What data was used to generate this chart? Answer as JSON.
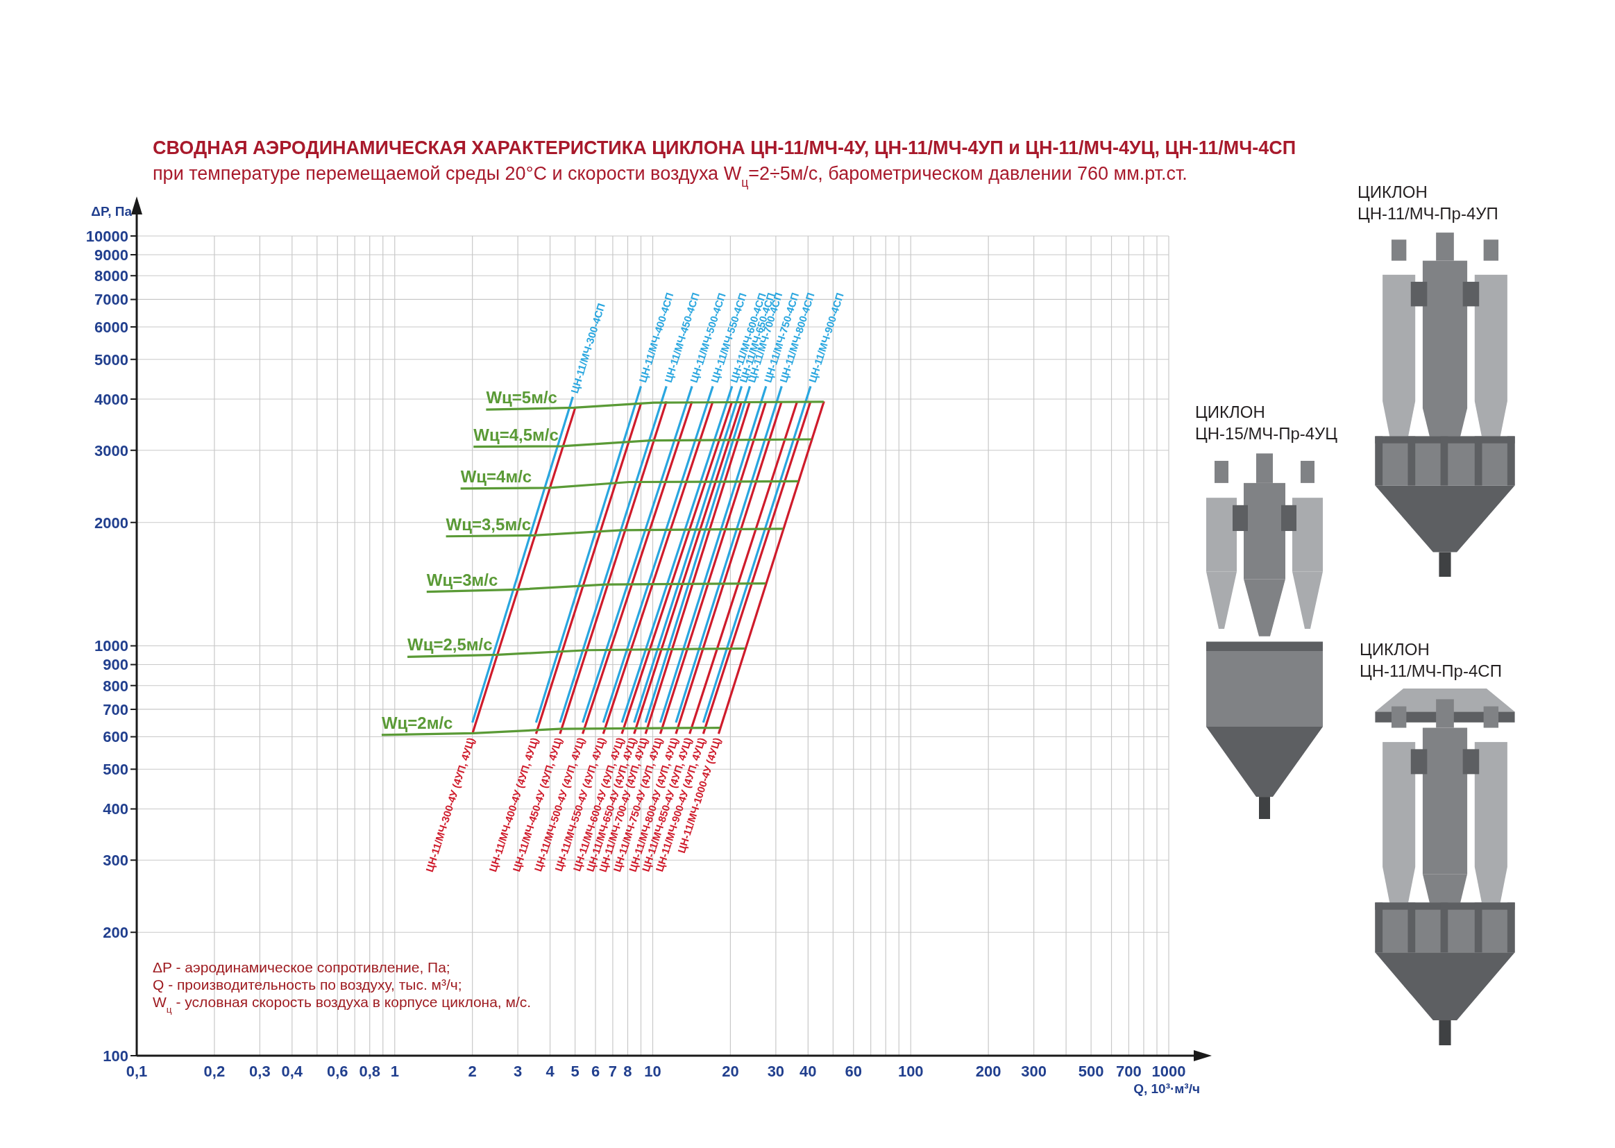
{
  "chart_data": {
    "type": "line",
    "title": "СВОДНАЯ АЭРОДИНАМИЧЕСКАЯ ХАРАКТЕРИСТИКА ЦИКЛОНА ЦН-11/МЧ-4У, ЦН-11/МЧ-4УП и ЦН-11/МЧ-4УЦ, ЦН-11/МЧ-4СП",
    "subtitle": "при температуре перемещаемой среды 20°С и скорости воздуха W$_{ц}$=2÷5м/с, барометрическом давлении 760 мм.рт.ст.",
    "xlabel": "Q, 10³·м³/ч",
    "ylabel": "ΔP, Па",
    "log": "xy",
    "grid": true,
    "xlim": [
      0.1,
      1000
    ],
    "ylim": [
      100,
      10000
    ],
    "xticks": [
      {
        "value": 0.1,
        "label": "0,1"
      },
      {
        "value": 0.2,
        "label": "0,2"
      },
      {
        "value": 0.3,
        "label": "0,3"
      },
      {
        "value": 0.4,
        "label": "0,4"
      },
      {
        "value": 0.5,
        "label": null
      },
      {
        "value": 0.6,
        "label": "0,6"
      },
      {
        "value": 0.7,
        "label": null
      },
      {
        "value": 0.8,
        "label": "0,8"
      },
      {
        "value": 0.9,
        "label": null
      },
      1,
      2,
      3,
      4,
      5,
      6,
      7,
      8,
      {
        "value": 9,
        "label": null
      },
      10,
      20,
      30,
      40,
      {
        "value": 50,
        "label": null
      },
      60,
      {
        "value": 70,
        "label": null
      },
      {
        "value": 80,
        "label": null
      },
      {
        "value": 90,
        "label": null
      },
      100,
      200,
      300,
      {
        "value": 400,
        "label": null
      },
      500,
      {
        "value": 600,
        "label": null
      },
      700,
      {
        "value": 800,
        "label": null
      },
      {
        "value": 900,
        "label": null
      },
      1000
    ],
    "yticks": [
      100,
      200,
      300,
      400,
      500,
      600,
      700,
      800,
      900,
      1000,
      2000,
      3000,
      4000,
      5000,
      6000,
      7000,
      8000,
      9000,
      10000
    ],
    "series": [
      {
        "name": "ЦН-11/МЧ-300-4СП",
        "color": "#29a6df",
        "x": [
          4.9,
          2.0
        ],
        "values": [
          4050,
          650
        ]
      },
      {
        "name": "ЦН-11/МЧ-400-4СП",
        "color": "#29a6df",
        "x": [
          9.0,
          3.53
        ],
        "values": [
          4300,
          650
        ]
      },
      {
        "name": "ЦН-11/МЧ-450-4СП",
        "color": "#29a6df",
        "x": [
          11.3,
          4.37
        ],
        "values": [
          4300,
          650
        ]
      },
      {
        "name": "ЦН-11/МЧ-500-4СП",
        "color": "#29a6df",
        "x": [
          14.2,
          5.35
        ],
        "values": [
          4300,
          650
        ]
      },
      {
        "name": "ЦН-11/МЧ-550-4СП",
        "color": "#29a6df",
        "x": [
          17.1,
          6.43
        ],
        "values": [
          4300,
          650
        ]
      },
      {
        "name": "ЦН-11/МЧ-600-4СП",
        "color": "#29a6df",
        "x": [
          20.3,
          7.59
        ],
        "values": [
          4300,
          650
        ]
      },
      {
        "name": "ЦН-11/МЧ-650-4СП",
        "color": "#29a6df",
        "x": [
          22.1,
          8.47
        ],
        "values": [
          4300,
          650
        ]
      },
      {
        "name": "ЦН-11/МЧ-700-4СП",
        "color": "#29a6df",
        "x": [
          23.8,
          9.38
        ],
        "values": [
          4300,
          650
        ]
      },
      {
        "name": "ЦН-11/МЧ-750-4СП",
        "color": "#29a6df",
        "x": [
          27.5,
          10.7
        ],
        "values": [
          4300,
          650
        ]
      },
      {
        "name": "ЦН-11/МЧ-800-4СП",
        "color": "#29a6df",
        "x": [
          31.6,
          12.3
        ],
        "values": [
          4300,
          650
        ]
      },
      {
        "name": "ЦН-11/МЧ-900-4СП",
        "color": "#29a6df",
        "x": [
          40.9,
          15.7
        ],
        "values": [
          4300,
          650
        ]
      },
      {
        "name": "ЦН-11/МЧ-300-4У (4УП, 4УЦ)",
        "color": "#cf1b2b",
        "x": [
          2.0,
          5.0
        ],
        "values": [
          610,
          3800
        ]
      },
      {
        "name": "ЦН-11/МЧ-400-4У (4УП, 4УЦ)",
        "color": "#cf1b2b",
        "x": [
          3.53,
          9.0
        ],
        "values": [
          610,
          3900
        ]
      },
      {
        "name": "ЦН-11/МЧ-450-4У (4УП, 4УЦ)",
        "color": "#cf1b2b",
        "x": [
          4.37,
          11.3
        ],
        "values": [
          610,
          3950
        ]
      },
      {
        "name": "ЦН-11/МЧ-500-4У (4УП, 4УЦ)",
        "color": "#cf1b2b",
        "x": [
          5.35,
          14.2
        ],
        "values": [
          610,
          3950
        ]
      },
      {
        "name": "ЦН-11/МЧ-550-4У (4УП, 4УЦ)",
        "color": "#cf1b2b",
        "x": [
          6.43,
          17.1
        ],
        "values": [
          610,
          3950
        ]
      },
      {
        "name": "ЦН-11/МЧ-600-4У (4УП, 4УЦ)",
        "color": "#cf1b2b",
        "x": [
          7.59,
          20.3
        ],
        "values": [
          610,
          3950
        ]
      },
      {
        "name": "ЦН-11/МЧ-650-4У (4УП, 4УЦ)",
        "color": "#cf1b2b",
        "x": [
          8.47,
          22.1
        ],
        "values": [
          610,
          3950
        ]
      },
      {
        "name": "ЦН-11/МЧ-700-4У (4УП, 4УЦ)",
        "color": "#cf1b2b",
        "x": [
          9.38,
          23.8
        ],
        "values": [
          610,
          3950
        ]
      },
      {
        "name": "ЦН-11/МЧ-750-4У (4УП, 4УЦ)",
        "color": "#cf1b2b",
        "x": [
          10.7,
          27.5
        ],
        "values": [
          610,
          3950
        ]
      },
      {
        "name": "ЦН-11/МЧ-800-4У (4УП, 4УЦ)",
        "color": "#cf1b2b",
        "x": [
          12.3,
          31.6
        ],
        "values": [
          610,
          3950
        ]
      },
      {
        "name": "ЦН-11/МЧ-850-4У (4УП, 4УЦ)",
        "color": "#cf1b2b",
        "x": [
          13.9,
          36.3
        ],
        "values": [
          610,
          3950
        ]
      },
      {
        "name": "ЦН-11/МЧ-900-4У (4УП, 4УЦ)",
        "color": "#cf1b2b",
        "x": [
          15.7,
          40.9
        ],
        "values": [
          610,
          3950
        ]
      },
      {
        "name": "ЦН-11/МЧ-1000-4У (4УЦ)",
        "color": "#cf1b2b",
        "x": [
          18.0,
          46.1
        ],
        "values": [
          610,
          3950
        ]
      },
      {
        "name": "Wц=2м/с",
        "color": "#5a9a36",
        "x": [
          0.89,
          2.02,
          4.37,
          18.2
        ],
        "values": [
          606,
          612,
          627,
          631
        ]
      },
      {
        "name": "Wц=2,5м/с",
        "color": "#5a9a36",
        "x": [
          1.12,
          2.5,
          5.55,
          22.7
        ],
        "values": [
          940,
          951,
          976,
          985
        ]
      },
      {
        "name": "Wц=3м/с",
        "color": "#5a9a36",
        "x": [
          1.33,
          2.99,
          6.55,
          27.4
        ],
        "values": [
          1355,
          1372,
          1411,
          1420
        ]
      },
      {
        "name": "Wц=3,5м/с",
        "color": "#5a9a36",
        "x": [
          1.58,
          3.45,
          7.55,
          32
        ],
        "values": [
          1850,
          1860,
          1915,
          1930
        ]
      },
      {
        "name": "Wц=4м/с",
        "color": "#5a9a36",
        "x": [
          1.8,
          3.98,
          8.1,
          36.6
        ],
        "values": [
          2420,
          2430,
          2510,
          2520
        ]
      },
      {
        "name": "Wц=4,5м/с",
        "color": "#5a9a36",
        "x": [
          2.02,
          4.44,
          9.8,
          41.2
        ],
        "values": [
          3060,
          3070,
          3170,
          3190
        ]
      },
      {
        "name": "Wц=5м/с",
        "color": "#5a9a36",
        "x": [
          2.26,
          4.95,
          10.1,
          46
        ],
        "values": [
          3770,
          3810,
          3920,
          3940
        ]
      }
    ],
    "annotations": [
      "ΔP - аэродинамическое сопротивление, Па;",
      "Q - производительность по воздуху, тыс. м³/ч;",
      "W$_{ц}$ - условная скорость воздуха в корпусе циклона, м/с.",
      "ЦИКЛОН\nЦН-11/МЧ-Пр-4УП",
      "ЦИКЛОН\nЦН-15/МЧ-Пр-4УЦ",
      "ЦИКЛОН\nЦН-11/МЧ-Пр-4СП"
    ]
  }
}
